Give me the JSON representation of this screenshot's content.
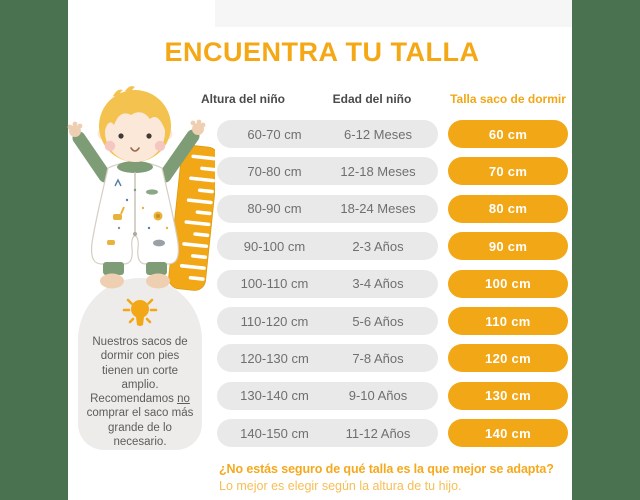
{
  "title": "ENCUENTRA TU TALLA",
  "colors": {
    "accent_orange": "#f2a716",
    "side_green": "#4a7251",
    "pill_gray": "#e9e9e9",
    "tip_box_gray": "#edecea",
    "header_text": "#4a4a4a",
    "row_text": "#6f6f6f"
  },
  "table": {
    "headers": {
      "height": "Altura del niño",
      "age": "Edad del niño",
      "size": "Talla saco de dormir"
    },
    "rows": [
      {
        "height": "60-70 cm",
        "age": "6-12 Meses",
        "size": "60 cm"
      },
      {
        "height": "70-80 cm",
        "age": "12-18 Meses",
        "size": "70 cm"
      },
      {
        "height": "80-90 cm",
        "age": "18-24 Meses",
        "size": "80 cm"
      },
      {
        "height": "90-100 cm",
        "age": "2-3 Años",
        "size": "90 cm"
      },
      {
        "height": "100-110 cm",
        "age": "3-4 Años",
        "size": "100 cm"
      },
      {
        "height": "110-120 cm",
        "age": "5-6 Años",
        "size": "110 cm"
      },
      {
        "height": "120-130 cm",
        "age": "7-8 Años",
        "size": "120 cm"
      },
      {
        "height": "130-140 cm",
        "age": "9-10 Años",
        "size": "130 cm"
      },
      {
        "height": "140-150 cm",
        "age": "11-12 Años",
        "size": "140 cm"
      }
    ]
  },
  "tip": {
    "icon": "lightbulb-icon",
    "text_before": "Nuestros sacos de dormir con pies tienen un corte amplio. Recomendamos ",
    "text_emphasis": "no",
    "text_after": " comprar el saco más grande de lo necesario."
  },
  "illustration": {
    "description": "child-in-footed-sleeping-bag-with-ruler"
  },
  "footer": {
    "question": "¿No estás seguro de qué talla es la que mejor se adapta?",
    "answer": "Lo mejor es elegir según la altura de tu hijo."
  }
}
